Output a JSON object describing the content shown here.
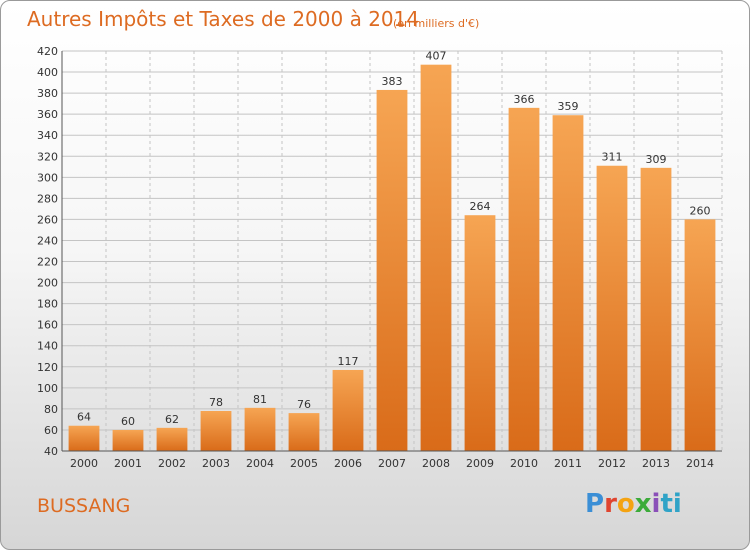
{
  "title": "Autres Impôts et Taxes de 2000 à 2014",
  "subtitle": "(en milliers d'€)",
  "place": "BUSSANG",
  "logo": [
    "P",
    "r",
    "o",
    "x",
    "i",
    "ti"
  ],
  "colors": {
    "bar_light": "#f6a553",
    "bar_dark": "#d96b19",
    "text_accent": "#dd6b22",
    "grid": "#c4c4c4"
  },
  "chart_data": {
    "type": "bar",
    "categories": [
      "2000",
      "2001",
      "2002",
      "2003",
      "2004",
      "2005",
      "2006",
      "2007",
      "2008",
      "2009",
      "2010",
      "2011",
      "2012",
      "2013",
      "2014"
    ],
    "values": [
      64,
      60,
      62,
      78,
      81,
      76,
      117,
      383,
      407,
      264,
      366,
      359,
      311,
      309,
      260
    ],
    "ylim": [
      40,
      420
    ],
    "yticks": [
      40,
      60,
      80,
      100,
      120,
      140,
      160,
      180,
      200,
      220,
      240,
      260,
      280,
      300,
      320,
      340,
      360,
      380,
      400,
      420
    ],
    "grid": true,
    "xlabel": "",
    "ylabel": ""
  }
}
